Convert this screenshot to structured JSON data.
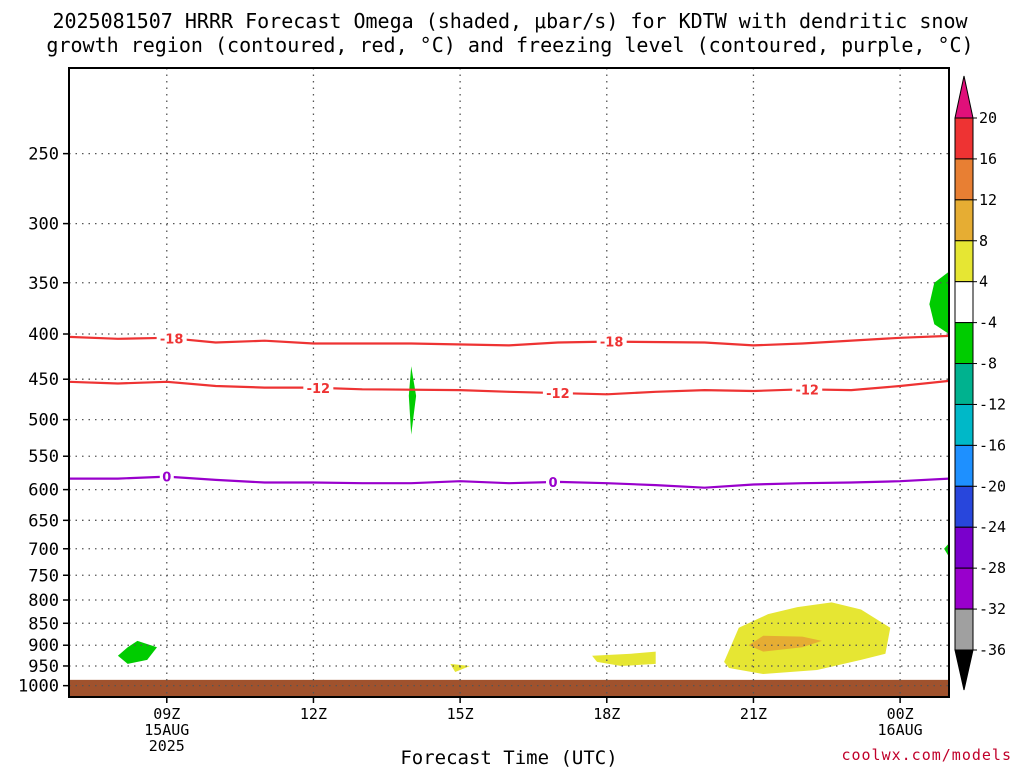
{
  "chart_data": {
    "type": "contour",
    "title_line1": "2025081507 HRRR Forecast Omega (shaded, μbar/s) for KDTW with dendritic snow",
    "title_line2": "growth region (contoured, red, °C) and freezing level (contoured, purple, °C)",
    "xlabel": "Forecast Time (UTC)",
    "credit": "coolwx.com/models",
    "x_range_hours": [
      7,
      25
    ],
    "x_ticks": [
      {
        "hour": 9,
        "lines": [
          "09Z",
          "15AUG",
          "2025"
        ]
      },
      {
        "hour": 12,
        "lines": [
          "12Z"
        ]
      },
      {
        "hour": 15,
        "lines": [
          "15Z"
        ]
      },
      {
        "hour": 18,
        "lines": [
          "18Z"
        ]
      },
      {
        "hour": 21,
        "lines": [
          "21Z"
        ]
      },
      {
        "hour": 24,
        "lines": [
          "00Z",
          "16AUG"
        ]
      }
    ],
    "y_axis": "pressure (mb), log scale, decreasing upward",
    "y_range_mb": [
      1030,
      200
    ],
    "y_ticks": [
      250,
      300,
      350,
      400,
      450,
      500,
      550,
      600,
      650,
      700,
      750,
      800,
      850,
      900,
      950,
      1000
    ],
    "grid": "dotted",
    "ground_top_mb": 985,
    "ground_color": "#a0522d",
    "contours": [
      {
        "level": -18,
        "color": "#ee3333",
        "labels": [
          {
            "hour": 9.1,
            "text": "-18"
          },
          {
            "hour": 18.1,
            "text": "-18"
          }
        ],
        "points": [
          [
            7,
            403
          ],
          [
            8,
            405
          ],
          [
            9,
            404
          ],
          [
            10,
            409
          ],
          [
            11,
            407
          ],
          [
            12,
            410
          ],
          [
            14,
            410
          ],
          [
            16,
            412
          ],
          [
            17,
            409
          ],
          [
            18,
            408
          ],
          [
            20,
            409
          ],
          [
            21,
            412
          ],
          [
            22,
            410
          ],
          [
            24,
            404
          ],
          [
            25,
            402
          ]
        ]
      },
      {
        "level": -12,
        "color": "#ee3333",
        "labels": [
          {
            "hour": 12.1,
            "text": "-12"
          },
          {
            "hour": 17.0,
            "text": "-12"
          },
          {
            "hour": 22.1,
            "text": "-12"
          }
        ],
        "points": [
          [
            7,
            453
          ],
          [
            8,
            455
          ],
          [
            9,
            453
          ],
          [
            10,
            458
          ],
          [
            11,
            460
          ],
          [
            12,
            460
          ],
          [
            13,
            462
          ],
          [
            15,
            463
          ],
          [
            16,
            465
          ],
          [
            18,
            468
          ],
          [
            19,
            465
          ],
          [
            20,
            463
          ],
          [
            21,
            464
          ],
          [
            22,
            462
          ],
          [
            23,
            463
          ],
          [
            24,
            458
          ],
          [
            25,
            452
          ]
        ]
      },
      {
        "level": 0,
        "color": "#9900cc",
        "labels": [
          {
            "hour": 9.0,
            "text": "0"
          },
          {
            "hour": 16.9,
            "text": "0"
          }
        ],
        "points": [
          [
            7,
            583
          ],
          [
            8,
            583
          ],
          [
            9,
            580
          ],
          [
            10,
            585
          ],
          [
            11,
            589
          ],
          [
            12,
            589
          ],
          [
            13,
            590
          ],
          [
            14,
            590
          ],
          [
            15,
            587
          ],
          [
            16,
            590
          ],
          [
            17,
            588
          ],
          [
            18,
            590
          ],
          [
            19,
            593
          ],
          [
            20,
            597
          ],
          [
            21,
            592
          ],
          [
            22,
            590
          ],
          [
            23,
            589
          ],
          [
            24,
            587
          ],
          [
            25,
            583
          ]
        ]
      }
    ],
    "omega_regions": [
      {
        "range": "-8 to -4",
        "color": "#00cc00",
        "points": [
          [
            8.0,
            925
          ],
          [
            8.2,
            905
          ],
          [
            8.4,
            890
          ],
          [
            8.8,
            905
          ],
          [
            8.6,
            935
          ],
          [
            8.2,
            945
          ]
        ]
      },
      {
        "range": "-8 to -4",
        "color": "#00cc00",
        "points": [
          [
            14.0,
            520
          ],
          [
            14.1,
            470
          ],
          [
            14.0,
            435
          ],
          [
            13.95,
            470
          ]
        ]
      },
      {
        "range": "-8 to -4",
        "color": "#00cc00",
        "points": [
          [
            25.0,
            340
          ],
          [
            24.7,
            350
          ],
          [
            24.6,
            370
          ],
          [
            24.7,
            390
          ],
          [
            25.0,
            400
          ]
        ]
      },
      {
        "range": "-8 to -4",
        "color": "#00cc00",
        "points": [
          [
            25.0,
            690
          ],
          [
            24.9,
            700
          ],
          [
            25.0,
            715
          ]
        ]
      },
      {
        "range": "4 to 8",
        "color": "#e6e633",
        "points": [
          [
            14.8,
            945
          ],
          [
            15.2,
            950
          ],
          [
            14.9,
            965
          ]
        ]
      },
      {
        "range": "4 to 8",
        "color": "#e6e633",
        "points": [
          [
            17.7,
            925
          ],
          [
            18.5,
            920
          ],
          [
            19.0,
            915
          ],
          [
            19.0,
            945
          ],
          [
            18.3,
            950
          ],
          [
            17.8,
            940
          ]
        ]
      },
      {
        "range": "4 to 8",
        "color": "#e6e633",
        "points": [
          [
            20.4,
            940
          ],
          [
            20.7,
            860
          ],
          [
            21.3,
            830
          ],
          [
            21.9,
            815
          ],
          [
            22.6,
            805
          ],
          [
            23.2,
            820
          ],
          [
            23.8,
            860
          ],
          [
            23.7,
            920
          ],
          [
            23.2,
            935
          ],
          [
            22.3,
            960
          ],
          [
            21.2,
            970
          ],
          [
            20.5,
            955
          ]
        ]
      },
      {
        "range": "8 to 12",
        "color": "#e6ad33",
        "points": [
          [
            20.9,
            900
          ],
          [
            21.2,
            878
          ],
          [
            22.0,
            880
          ],
          [
            22.4,
            890
          ],
          [
            22.0,
            905
          ],
          [
            21.2,
            915
          ]
        ]
      }
    ],
    "colorbar": {
      "ticks": [
        "20",
        "16",
        "12",
        "8",
        "4",
        "-4",
        "-8",
        "-12",
        "-16",
        "-20",
        "-24",
        "-28",
        "-32",
        "-36"
      ],
      "bins": [
        {
          "color": "#ee3333"
        },
        {
          "color": "#e87f33"
        },
        {
          "color": "#e6ad33"
        },
        {
          "color": "#e6e633"
        },
        {
          "color": "#ffffff"
        },
        {
          "color": "#00cc00"
        },
        {
          "color": "#00b28f"
        },
        {
          "color": "#00b8c8"
        },
        {
          "color": "#1e90ff"
        },
        {
          "color": "#2846dc"
        },
        {
          "color": "#7a00cc"
        },
        {
          "color": "#9900cc"
        },
        {
          "color": "#a0a0a0"
        }
      ],
      "top_arrow_color": "#e0107a",
      "bottom_arrow_color": "#000000"
    }
  }
}
